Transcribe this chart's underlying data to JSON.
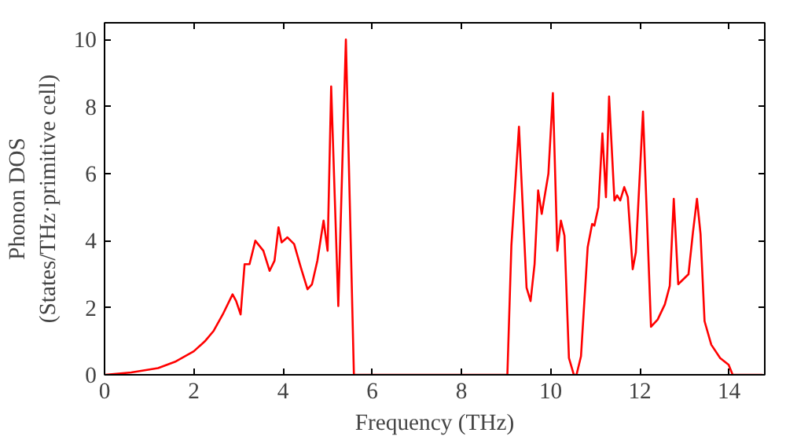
{
  "chart_data": {
    "type": "line",
    "xlabel": "Frequency (THz)",
    "ylabel": "Phonon DOS\n(States/THz·primitive cell)",
    "xlim": [
      0,
      14.8
    ],
    "ylim": [
      0,
      10.5
    ],
    "xticks": [
      0,
      2,
      4,
      6,
      8,
      10,
      12,
      14
    ],
    "yticks": [
      0,
      2,
      4,
      6,
      8,
      10
    ],
    "grid": false,
    "line_style": "solid",
    "series": [
      {
        "color": "#ff0000",
        "x": [
          0.02,
          0.6,
          1.2,
          1.6,
          2.0,
          2.25,
          2.44,
          2.65,
          2.87,
          2.95,
          3.05,
          3.14,
          3.25,
          3.38,
          3.56,
          3.7,
          3.81,
          3.9,
          3.97,
          4.1,
          4.25,
          4.4,
          4.55,
          4.65,
          4.77,
          4.91,
          5.0,
          5.08,
          5.24,
          5.41,
          5.59,
          9.03,
          9.12,
          9.29,
          9.46,
          9.55,
          9.64,
          9.72,
          9.8,
          9.95,
          10.05,
          10.15,
          10.23,
          10.31,
          10.41,
          10.52,
          10.58,
          10.68,
          10.83,
          10.93,
          10.98,
          11.07,
          11.16,
          11.24,
          11.31,
          11.43,
          11.49,
          11.56,
          11.65,
          11.73,
          11.84,
          11.91,
          12.07,
          12.25,
          12.4,
          12.56,
          12.67,
          12.76,
          12.86,
          13.09,
          13.19,
          13.28,
          13.36,
          13.45,
          13.6,
          13.8,
          13.99,
          14.08,
          14.75
        ],
        "values": [
          0,
          0.07,
          0.2,
          0.4,
          0.7,
          1.0,
          1.3,
          1.8,
          2.4,
          2.2,
          1.8,
          3.3,
          3.3,
          4.0,
          3.7,
          3.1,
          3.4,
          4.4,
          3.95,
          4.1,
          3.9,
          3.2,
          2.55,
          2.7,
          3.4,
          4.6,
          3.7,
          8.6,
          2.05,
          10.0,
          0,
          0,
          3.86,
          7.4,
          2.6,
          2.2,
          3.3,
          5.5,
          4.8,
          6.0,
          8.4,
          3.7,
          4.6,
          4.15,
          0.5,
          0,
          0,
          0.55,
          3.8,
          4.5,
          4.45,
          5.0,
          7.2,
          5.3,
          8.3,
          5.2,
          5.35,
          5.2,
          5.6,
          5.3,
          3.15,
          3.65,
          7.85,
          1.43,
          1.65,
          2.1,
          2.65,
          5.25,
          2.7,
          3.0,
          4.25,
          5.25,
          4.2,
          1.6,
          0.9,
          0.5,
          0.3,
          0,
          0
        ]
      }
    ]
  }
}
